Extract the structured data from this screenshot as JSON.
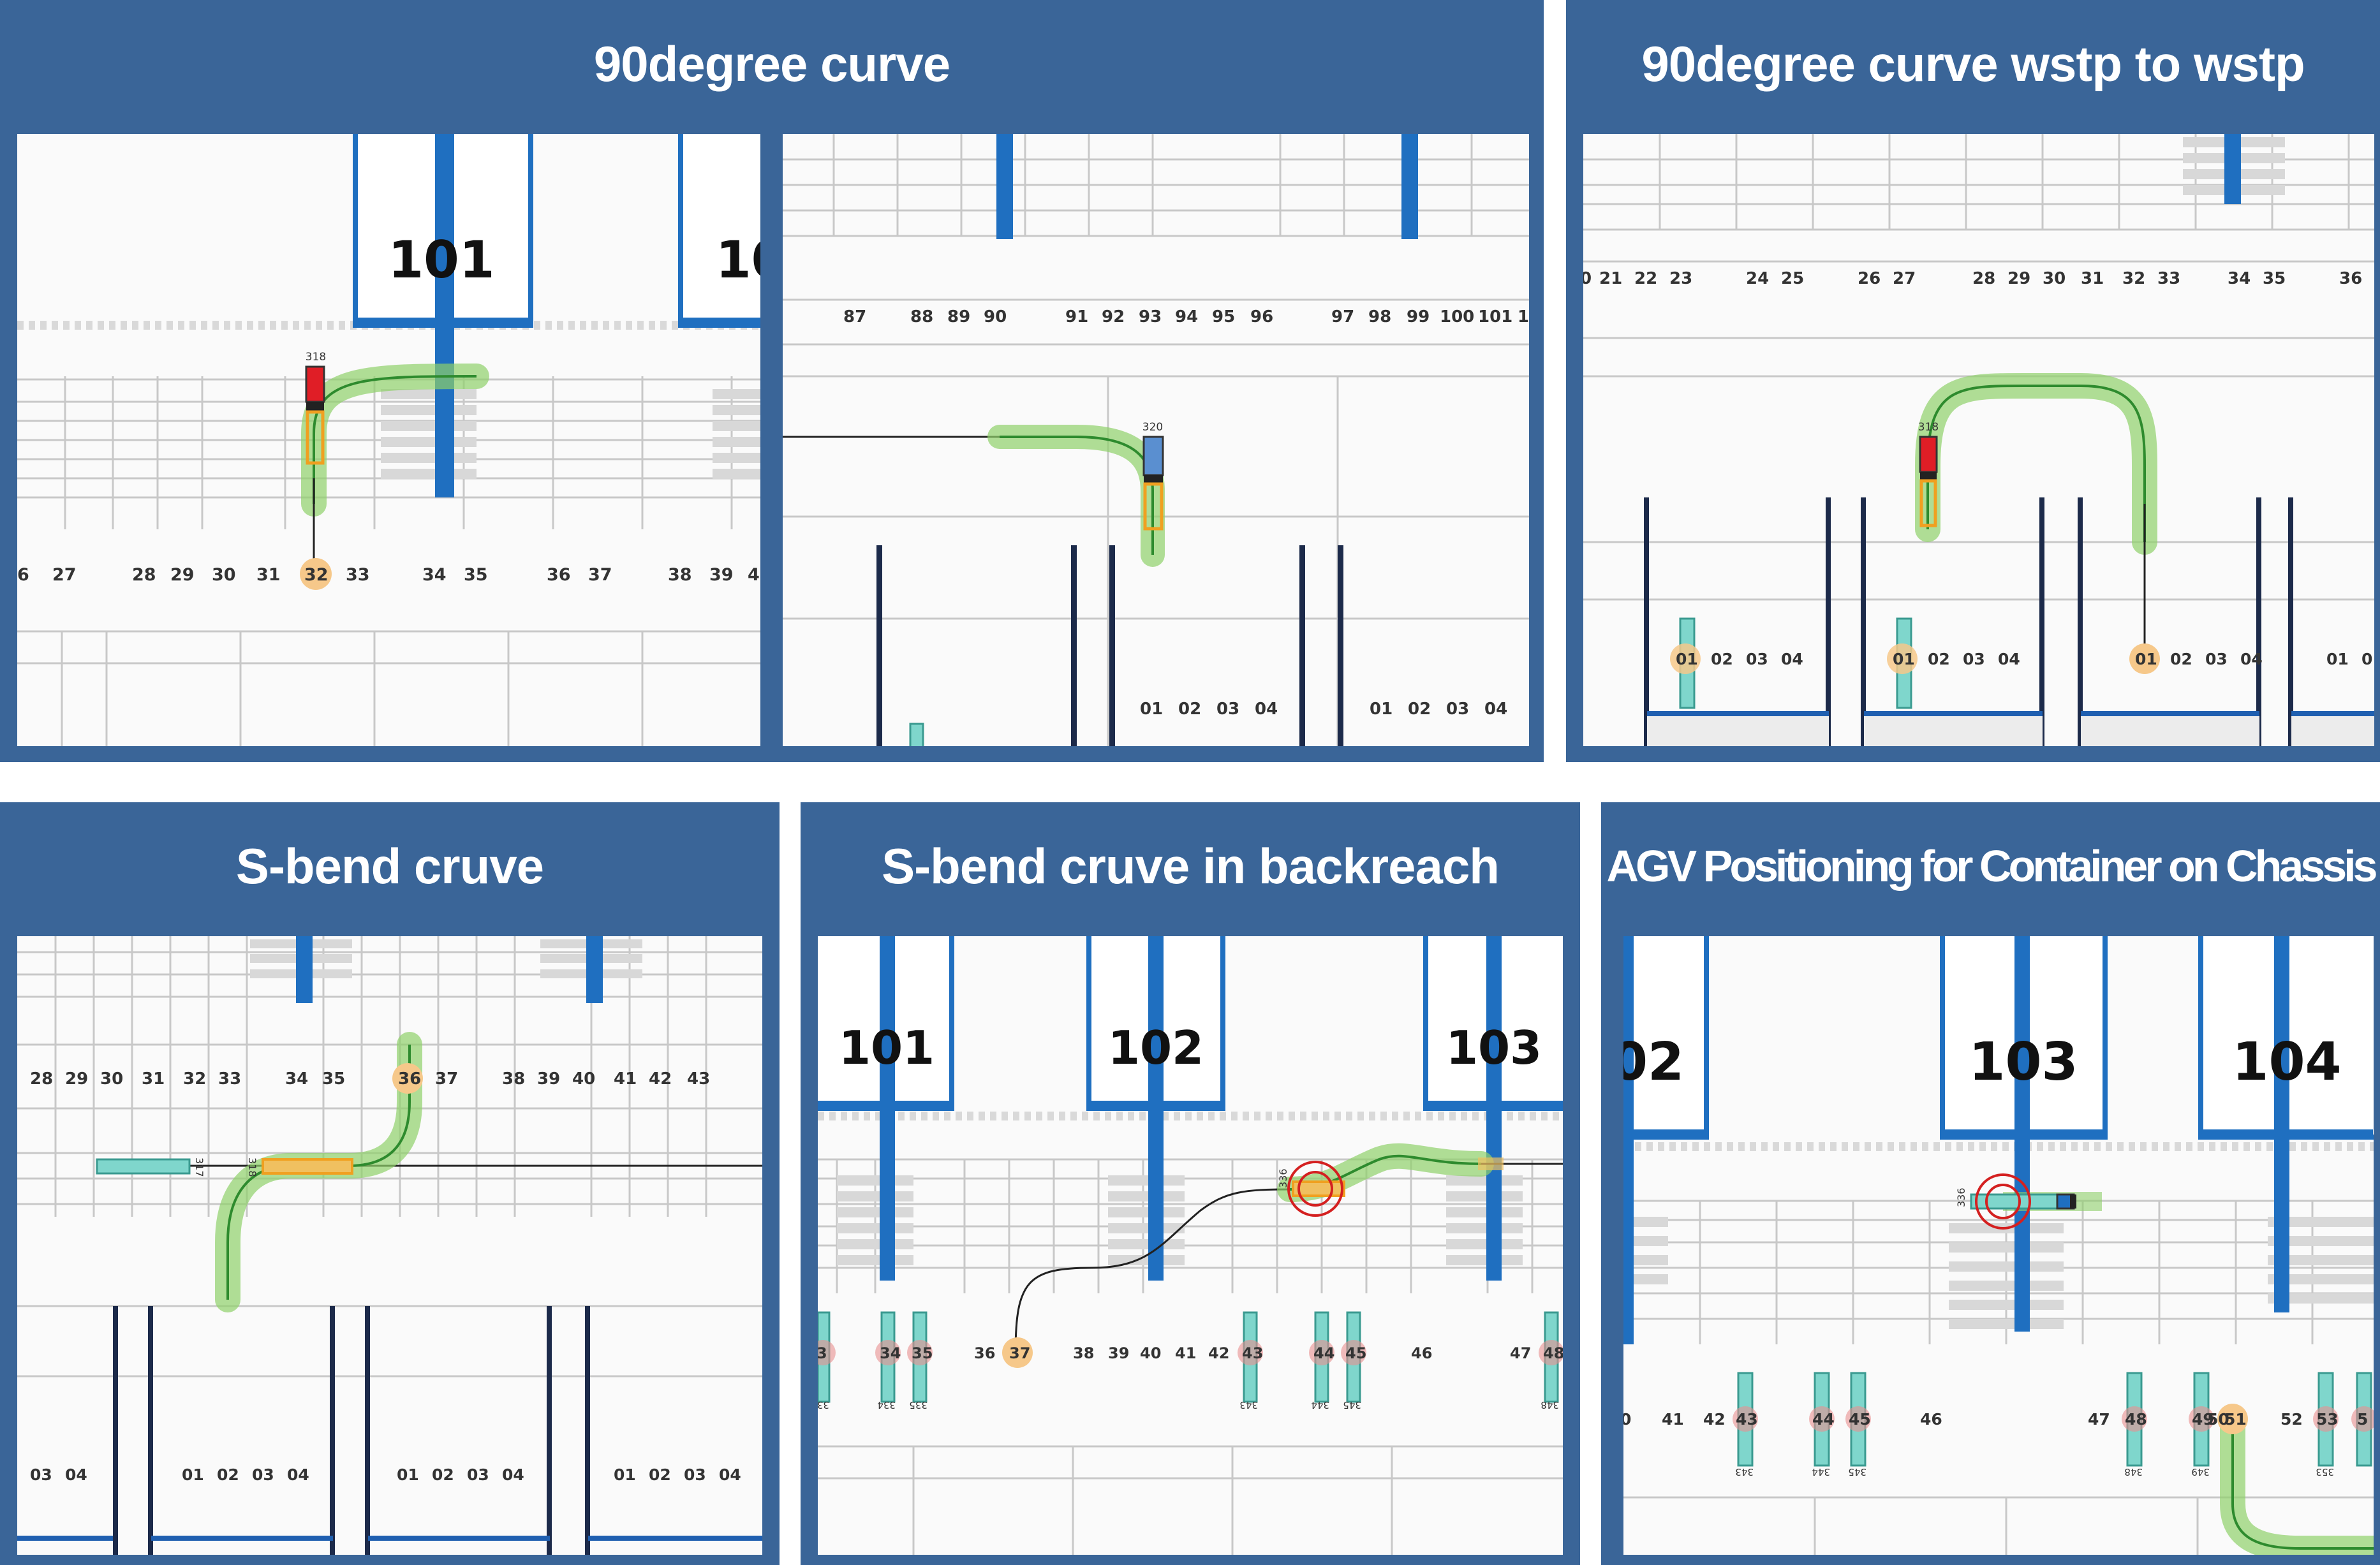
{
  "panels": [
    {
      "title": "90degree curve",
      "view_a": {
        "block_labels": [
          "101",
          "10"
        ],
        "slot_numbers": [
          "6",
          "27",
          "28",
          "29",
          "30",
          "31",
          "32",
          "33",
          "34",
          "35",
          "36",
          "37",
          "38",
          "39",
          "4"
        ],
        "vehicle_id": "318"
      },
      "view_b": {
        "slot_numbers": [
          "87",
          "88",
          "89",
          "90",
          "91",
          "92",
          "93",
          "94",
          "95",
          "96",
          "97",
          "98",
          "99",
          "100",
          "101",
          "1"
        ],
        "lane_numbers_a": [
          "01",
          "02",
          "03",
          "04"
        ],
        "lane_numbers_b": [
          "01",
          "02",
          "03",
          "04"
        ],
        "vehicle_id": "320"
      }
    },
    {
      "title": "90degree curve wstp to wstp",
      "view": {
        "slot_numbers": [
          "0",
          "21",
          "22",
          "23",
          "24",
          "25",
          "26",
          "27",
          "28",
          "29",
          "30",
          "31",
          "32",
          "33",
          "34",
          "35",
          "36"
        ],
        "lane_groups": [
          [
            "01",
            "02",
            "03",
            "04"
          ],
          [
            "01",
            "02",
            "03",
            "04"
          ],
          [
            "01",
            "02",
            "03",
            "04"
          ],
          [
            "01",
            "0"
          ]
        ],
        "vehicle_id": "318"
      }
    },
    {
      "title": "S-bend cruve",
      "view": {
        "slot_numbers": [
          "28",
          "29",
          "30",
          "31",
          "32",
          "33",
          "34",
          "35",
          "36",
          "37",
          "38",
          "39",
          "40",
          "41",
          "42",
          "43"
        ],
        "lane_groups": [
          [
            "03",
            "04"
          ],
          [
            "01",
            "02",
            "03",
            "04"
          ],
          [
            "01",
            "02",
            "03",
            "04"
          ],
          [
            "01",
            "02",
            "03",
            "04"
          ]
        ],
        "vehicle_ids": [
          "317",
          "318"
        ]
      }
    },
    {
      "title": "S-bend cruve in backreach",
      "view": {
        "block_labels": [
          "101",
          "102",
          "103"
        ],
        "slot_numbers": [
          "3",
          "34",
          "35",
          "36",
          "37",
          "38",
          "39",
          "40",
          "41",
          "42",
          "43",
          "44",
          "45",
          "46",
          "47",
          "48"
        ],
        "vehicle_id": "336",
        "lane_tags": [
          "33",
          "334",
          "335",
          "343",
          "344",
          "345",
          "348"
        ]
      }
    },
    {
      "title": "AGV Positioning for Container on Chassis",
      "view": {
        "block_labels": [
          "02",
          "103",
          "104"
        ],
        "slot_numbers": [
          "0",
          "41",
          "42",
          "43",
          "44",
          "45",
          "46",
          "47",
          "48",
          "49",
          "50",
          "51",
          "52",
          "53",
          "5"
        ],
        "vehicle_id": "336",
        "lane_tags": [
          "343",
          "344",
          "345",
          "348",
          "349",
          "353"
        ]
      }
    }
  ],
  "colors": {
    "panel_bg": "#3a6598",
    "title_text": "#ffffff",
    "map_bg": "#fafafa",
    "grid_line": "#c8c8c8",
    "block_blue": "#1f6fc0",
    "rail_navy": "#1c2a4a",
    "path_green": "#2e8b2e",
    "path_glow": "#8fd06a",
    "vehicle_red": "#e01e26",
    "vehicle_orange": "#f0a020",
    "target_ring": "#d42020",
    "slot_highlight": "#f6c88a",
    "lane_cyan": "#4fb8b0"
  }
}
